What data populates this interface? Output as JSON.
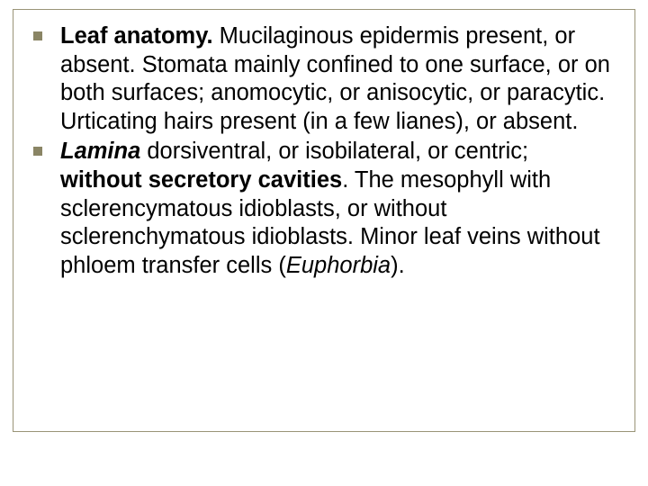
{
  "slide": {
    "background_color": "#ffffff",
    "frame_border_color": "#9a9477",
    "bullet_color": "#8a8565",
    "text_color": "#000000",
    "font_family": "Arial",
    "font_size_pt": 20,
    "bullets": [
      {
        "runs": [
          {
            "text": "Leaf anatomy.",
            "style": "b"
          },
          {
            "text": " Mucilaginous epidermis present, or absent. Stomata mainly confined to one surface, or on both surfaces; anomocytic, or anisocytic, or paracytic. Urticating hairs present (in a few lianes), or absent.",
            "style": ""
          }
        ]
      },
      {
        "runs": [
          {
            "text": "Lamina",
            "style": "bi"
          },
          {
            "text": " dorsiventral, or isobilateral, or centric; ",
            "style": ""
          },
          {
            "text": "without secretory cavities",
            "style": "b"
          },
          {
            "text": ". The mesophyll with sclerencymatous idioblasts, or without sclerenchymatous idioblasts. Minor leaf veins without phloem transfer cells (",
            "style": ""
          },
          {
            "text": "Euphorbia",
            "style": "i"
          },
          {
            "text": ").",
            "style": ""
          }
        ]
      }
    ]
  }
}
